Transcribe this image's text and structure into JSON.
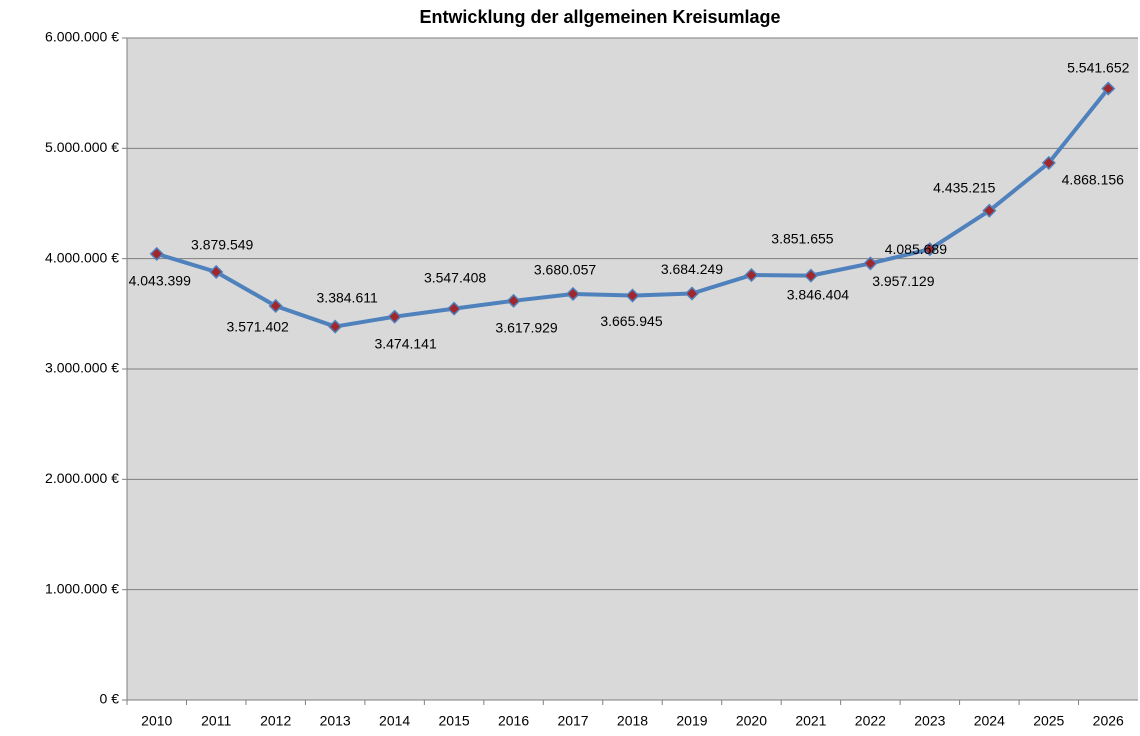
{
  "chart_data": {
    "type": "line",
    "title": "Entwicklung der allgemeinen Kreisumlage",
    "categories": [
      "2010",
      "2011",
      "2012",
      "2013",
      "2014",
      "2015",
      "2016",
      "2017",
      "2018",
      "2019",
      "2020",
      "2021",
      "2022",
      "2023",
      "2024",
      "2025",
      "2026"
    ],
    "series": [
      {
        "name": "Kreisumlage",
        "color": "#4f81bd",
        "marker_color": "#a0282d",
        "values": [
          4043399,
          3879549,
          3571402,
          3384611,
          3474141,
          3547408,
          3617929,
          3680057,
          3665945,
          3684249,
          3851655,
          3846404,
          3957129,
          4085689,
          4435215,
          4868156,
          5541652
        ],
        "value_labels": [
          "4.043.399",
          "3.879.549",
          "3.571.402",
          "3.384.611",
          "3.474.141",
          "3.547.408",
          "3.617.929",
          "3.680.057",
          "3.665.945",
          "3.684.249",
          "3.851.655",
          "3.846.404",
          "3.957.129",
          "4.085.689",
          "4.435.215",
          "4.868.156",
          "5.541.652"
        ]
      }
    ],
    "ylim": [
      0,
      6000000
    ],
    "yticks": [
      {
        "value": 0,
        "label": "0 €"
      },
      {
        "value": 1000000,
        "label": "1.000.000 €"
      },
      {
        "value": 2000000,
        "label": "2.000.000 €"
      },
      {
        "value": 3000000,
        "label": "3.000.000 €"
      },
      {
        "value": 4000000,
        "label": "4.000.000 €"
      },
      {
        "value": 5000000,
        "label": "5.000.000 €"
      },
      {
        "value": 6000000,
        "label": "6.000.000 €"
      }
    ],
    "grid": true
  }
}
